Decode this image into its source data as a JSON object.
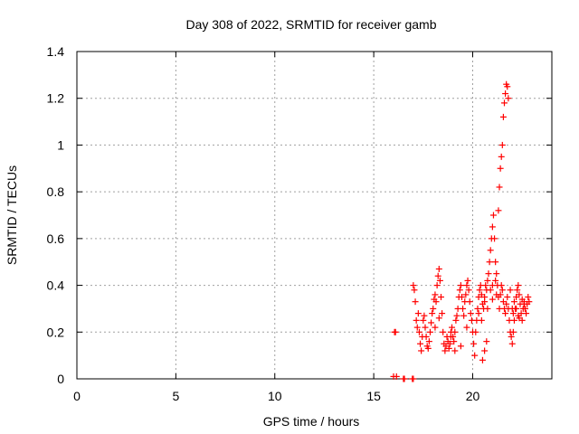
{
  "chart_data": {
    "type": "scatter",
    "title": "Day 308 of 2022, SRMTID for receiver gamb",
    "xlabel": "GPS time / hours",
    "ylabel": "SRMTID / TECUs",
    "xlim": [
      0,
      24
    ],
    "ylim": [
      0,
      1.4
    ],
    "xticks": [
      "0",
      "5",
      "10",
      "15",
      "20"
    ],
    "xtick_values": [
      0,
      5,
      10,
      15,
      20
    ],
    "yticks": [
      "0",
      "0.2",
      "0.4",
      "0.6",
      "0.8",
      "1",
      "1.2",
      "1.4"
    ],
    "ytick_values": [
      0,
      0.2,
      0.4,
      0.6,
      0.8,
      1.0,
      1.2,
      1.4
    ],
    "grid": true,
    "marker": "+",
    "color": "#ff0000",
    "series": [
      {
        "x": [
          16.0,
          16.05,
          16.1,
          16.15,
          16.5,
          16.55,
          16.95,
          17.0,
          17.0,
          17.05,
          17.1,
          17.15,
          17.2,
          17.25,
          17.3,
          17.35,
          17.4,
          17.45,
          17.5,
          17.55,
          17.6,
          17.65,
          17.7,
          17.75,
          17.8,
          17.85,
          17.9,
          17.95,
          18.0,
          18.05,
          18.1,
          18.15,
          18.2,
          18.25,
          18.3,
          18.35,
          18.4,
          18.45,
          18.5,
          18.55,
          18.6,
          18.65,
          18.7,
          18.75,
          18.8,
          18.85,
          18.9,
          18.95,
          19.0,
          19.05,
          19.1,
          19.15,
          19.2,
          19.25,
          19.3,
          19.35,
          19.4,
          19.45,
          19.5,
          19.55,
          19.6,
          19.65,
          19.7,
          19.75,
          19.8,
          19.85,
          19.9,
          19.95,
          20.0,
          20.05,
          20.1,
          20.15,
          20.2,
          20.25,
          20.3,
          20.35,
          20.4,
          20.45,
          20.5,
          20.55,
          20.6,
          20.65,
          20.7,
          20.75,
          20.8,
          20.85,
          20.9,
          20.95,
          21.0,
          21.05,
          21.1,
          21.15,
          21.2,
          21.25,
          21.3,
          21.35,
          21.4,
          21.45,
          21.5,
          21.55,
          21.6,
          21.65,
          21.7,
          21.75,
          21.8,
          21.85,
          21.9,
          21.95,
          22.0,
          22.05,
          22.1,
          22.15,
          22.2,
          22.25,
          22.3,
          22.35,
          22.4,
          22.45,
          22.5,
          22.55,
          22.6,
          22.65,
          22.7,
          22.75,
          22.8,
          22.85,
          21.3,
          21.35,
          21.4,
          21.45,
          21.5,
          21.55,
          21.6,
          21.65,
          21.7,
          21.75,
          21.8,
          20.3,
          20.45,
          20.6,
          20.75,
          20.9,
          21.0,
          21.15,
          21.9,
          22.05,
          22.2,
          22.35,
          22.5,
          22.65,
          18.1,
          18.3,
          18.9,
          19.1,
          19.4,
          19.7,
          20.5,
          22.0,
          22.1,
          22.3,
          22.6,
          21.0,
          21.2,
          20.6,
          20.7
        ],
        "y": [
          0.01,
          0.2,
          0.2,
          0.01,
          0.0,
          0.0,
          0.0,
          0.0,
          0.4,
          0.38,
          0.33,
          0.25,
          0.22,
          0.28,
          0.2,
          0.15,
          0.12,
          0.18,
          0.25,
          0.27,
          0.22,
          0.18,
          0.14,
          0.13,
          0.16,
          0.2,
          0.24,
          0.28,
          0.3,
          0.34,
          0.36,
          0.33,
          0.4,
          0.44,
          0.47,
          0.42,
          0.35,
          0.28,
          0.2,
          0.15,
          0.12,
          0.14,
          0.18,
          0.16,
          0.13,
          0.15,
          0.2,
          0.22,
          0.18,
          0.16,
          0.2,
          0.25,
          0.27,
          0.3,
          0.35,
          0.38,
          0.4,
          0.35,
          0.3,
          0.27,
          0.33,
          0.36,
          0.4,
          0.42,
          0.38,
          0.33,
          0.28,
          0.25,
          0.2,
          0.15,
          0.1,
          0.2,
          0.25,
          0.3,
          0.35,
          0.38,
          0.4,
          0.36,
          0.32,
          0.3,
          0.35,
          0.4,
          0.38,
          0.42,
          0.45,
          0.5,
          0.55,
          0.6,
          0.65,
          0.7,
          0.6,
          0.5,
          0.45,
          0.4,
          0.35,
          0.3,
          0.36,
          0.4,
          0.38,
          0.33,
          0.3,
          0.28,
          0.32,
          0.35,
          0.3,
          0.25,
          0.2,
          0.18,
          0.15,
          0.2,
          0.25,
          0.3,
          0.35,
          0.38,
          0.4,
          0.36,
          0.32,
          0.28,
          0.25,
          0.3,
          0.33,
          0.3,
          0.28,
          0.32,
          0.35,
          0.33,
          0.72,
          0.82,
          0.9,
          0.95,
          1.0,
          1.12,
          1.18,
          1.22,
          1.26,
          1.25,
          1.2,
          0.28,
          0.25,
          0.33,
          0.3,
          0.38,
          0.4,
          0.42,
          0.38,
          0.28,
          0.3,
          0.26,
          0.34,
          0.3,
          0.22,
          0.26,
          0.18,
          0.12,
          0.14,
          0.22,
          0.08,
          0.3,
          0.33,
          0.27,
          0.32,
          0.34,
          0.36,
          0.12,
          0.16
        ]
      }
    ]
  }
}
